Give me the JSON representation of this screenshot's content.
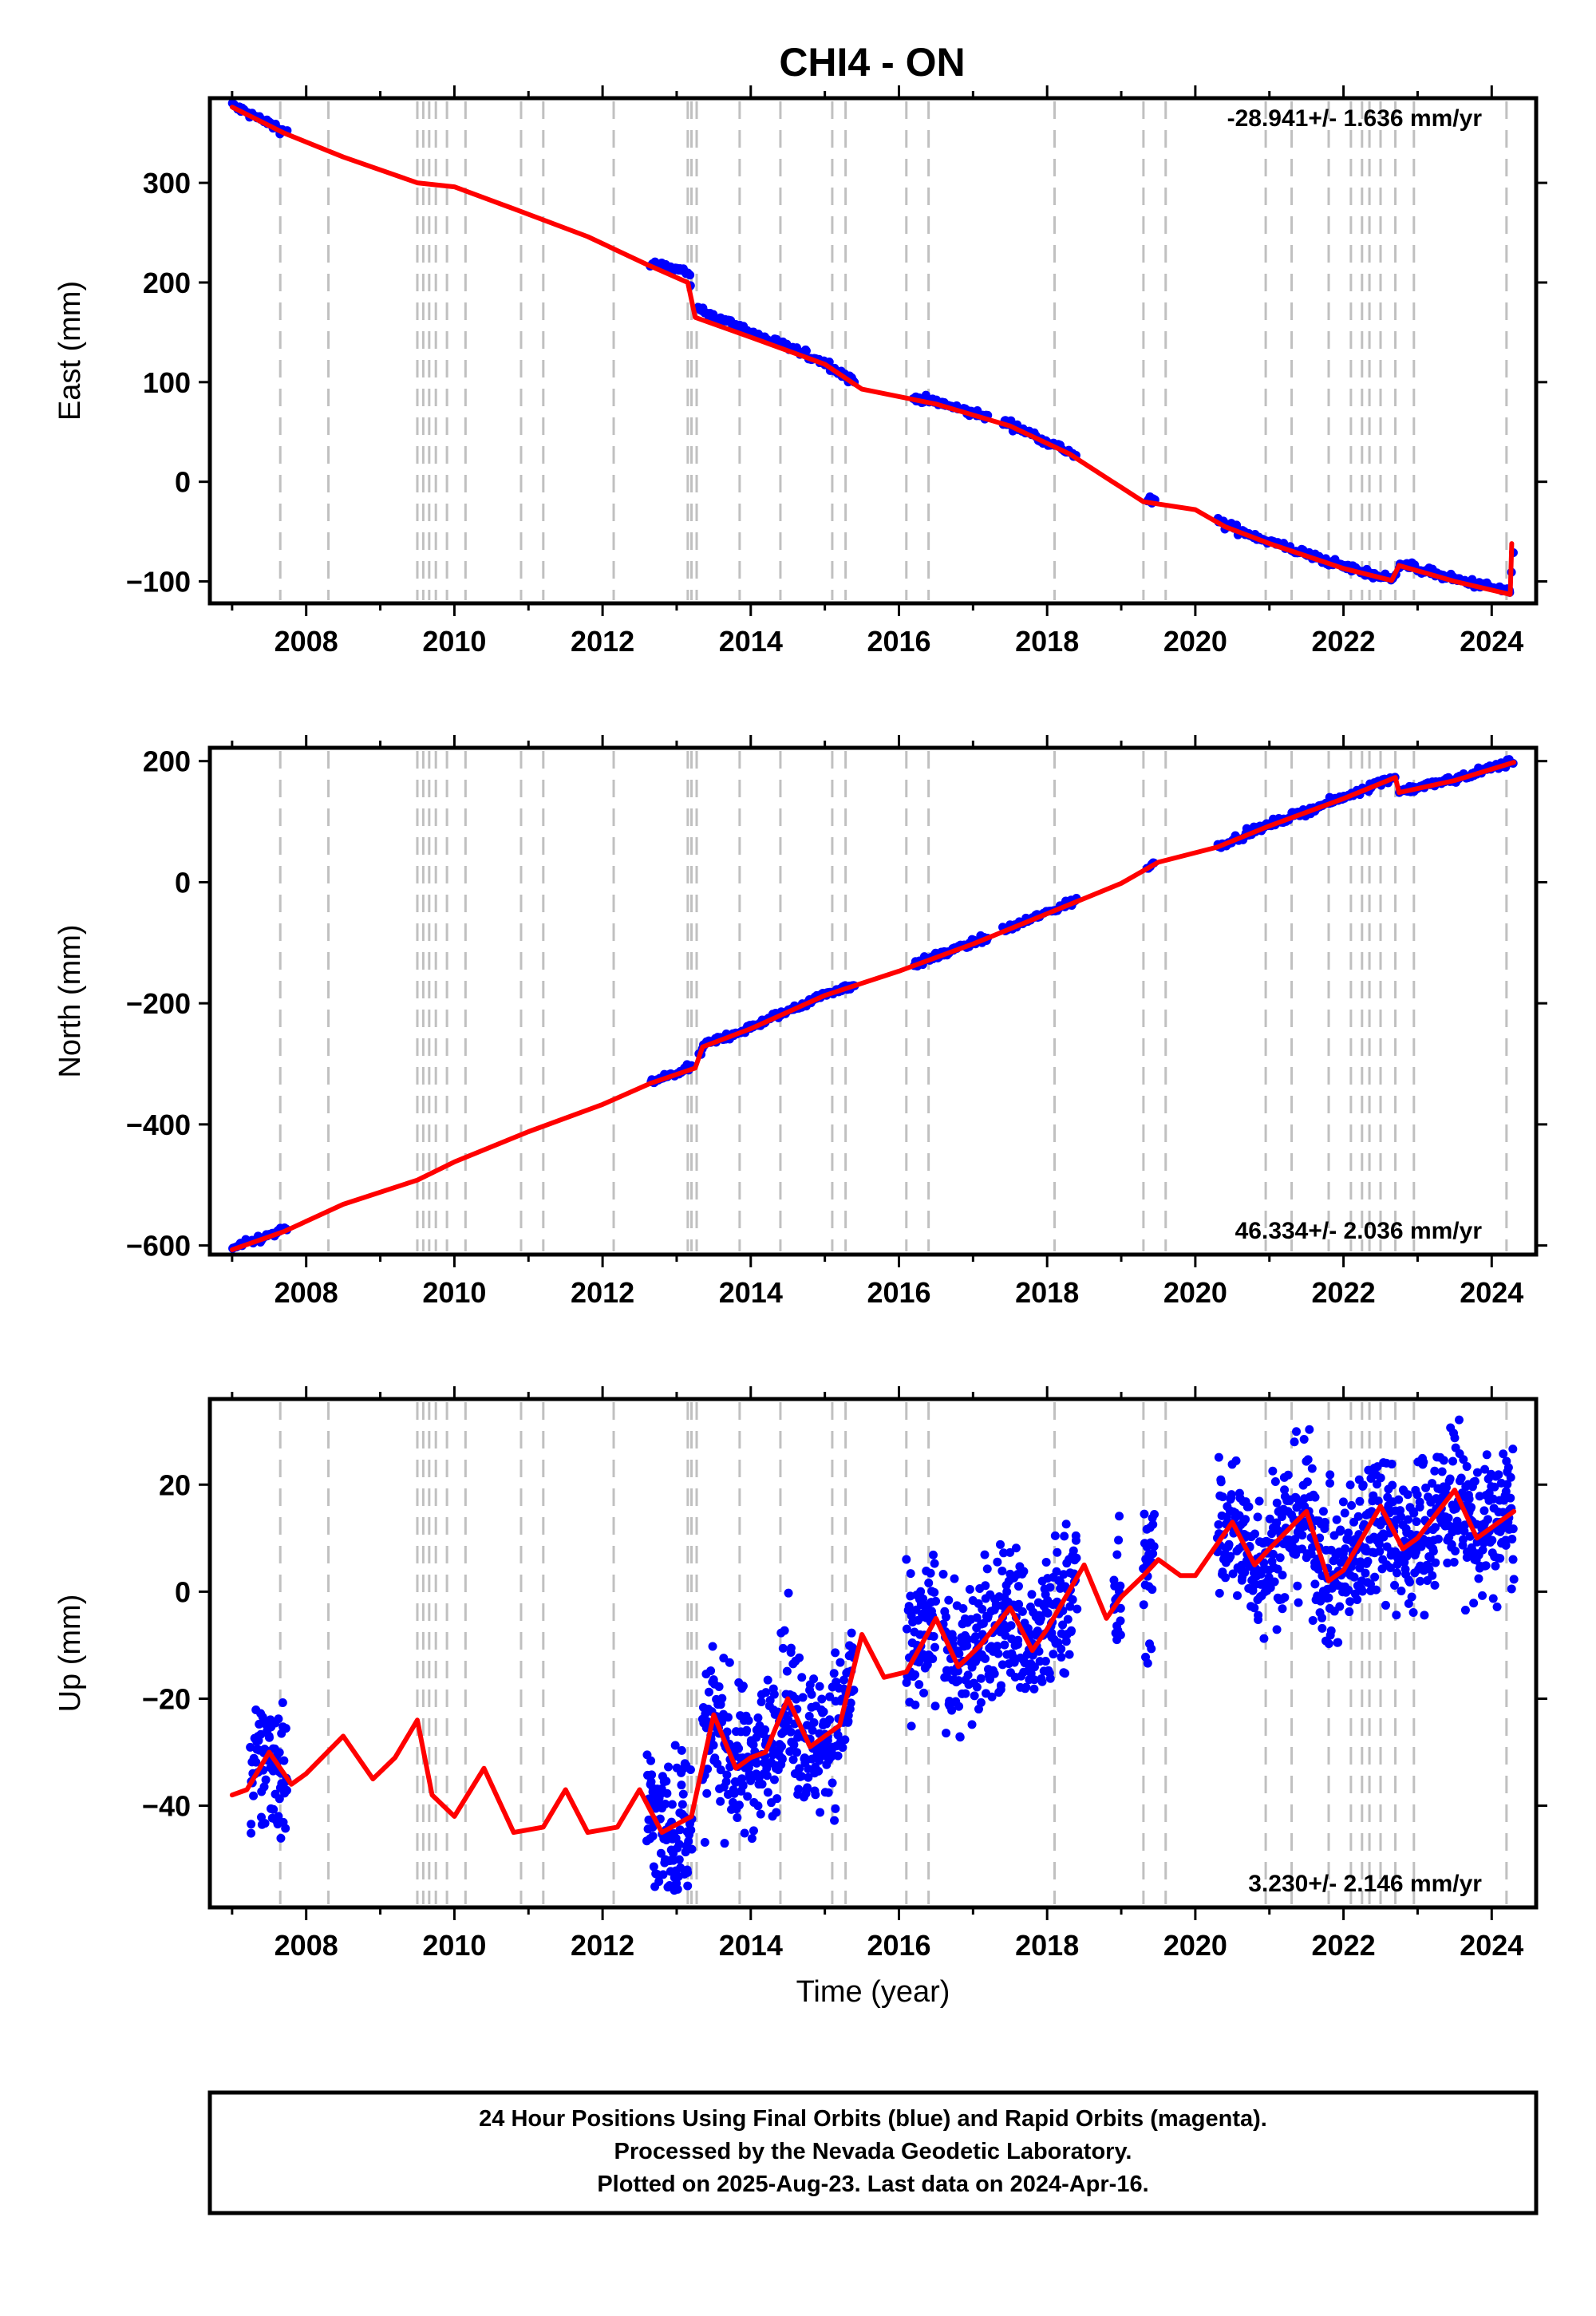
{
  "title": "CHI4 - ON",
  "footer": {
    "lines": [
      "24 Hour Positions Using Final Orbits (blue) and Rapid Orbits (magenta).",
      "Processed by the Nevada Geodetic Laboratory.",
      "Plotted on 2025-Aug-23. Last data on 2024-Apr-16."
    ]
  },
  "colors": {
    "data_points": "#0000ff",
    "model_line": "#ff0000",
    "event_lines": "#c0c0c0",
    "frame": "#000000"
  },
  "chart_data": [
    {
      "type": "scatter",
      "name": "east",
      "ylabel": "East (mm)",
      "xlabel": "",
      "rate_label": "-28.941+/- 1.636 mm/yr",
      "xlim": [
        2006.7,
        2024.6
      ],
      "ylim": [
        -122,
        385
      ],
      "y_ticks": [
        -100,
        0,
        100,
        200,
        300
      ],
      "y_tick_labels": [
        "−100",
        "0",
        "100",
        "200",
        "300"
      ],
      "x_ticks": [
        2008,
        2010,
        2012,
        2014,
        2016,
        2018,
        2020,
        2022,
        2024
      ],
      "x_tick_labels": [
        "2008",
        "2010",
        "2012",
        "2014",
        "2016",
        "2018",
        "2020",
        "2022",
        "2024"
      ],
      "event_lines": [
        2007.65,
        2008.3,
        2009.5,
        2009.58,
        2009.66,
        2009.75,
        2009.9,
        2010.15,
        2010.9,
        2011.2,
        2012.15,
        2013.15,
        2013.2,
        2013.27,
        2013.85,
        2014.4,
        2015.1,
        2015.28,
        2016.1,
        2016.4,
        2018.1,
        2019.3,
        2019.6,
        2020.95,
        2021.3,
        2021.8,
        2022.1,
        2022.25,
        2022.35,
        2022.5,
        2022.7,
        2022.95,
        2024.2
      ],
      "series": [
        {
          "role": "observations",
          "segments": [
            [
              2007.0,
              2007.75
            ],
            [
              2012.65,
              2013.2
            ],
            [
              2013.3,
              2015.4
            ],
            [
              2016.2,
              2017.2
            ],
            [
              2017.4,
              2018.4
            ],
            [
              2019.35,
              2019.45
            ],
            [
              2020.3,
              2022.7
            ],
            [
              2022.75,
              2024.3
            ]
          ],
          "scatter": 2.0,
          "x": [
            2007.0,
            2007.7,
            2008.5,
            2009.5,
            2010.0,
            2010.8,
            2011.8,
            2012.6,
            2013.15,
            2013.25,
            2014.0,
            2015.0,
            2015.5,
            2016.5,
            2017.5,
            2018.3,
            2019.3,
            2020.0,
            2020.4,
            2021.0,
            2022.0,
            2022.65,
            2022.75,
            2023.5,
            2024.25,
            2024.3
          ],
          "y": [
            378,
            352,
            330,
            302,
            300,
            278,
            248,
            220,
            210,
            175,
            150,
            120,
            95,
            80,
            58,
            30,
            -18,
            -26,
            -43,
            -60,
            -85,
            -98,
            -82,
            -98,
            -110,
            -62
          ]
        },
        {
          "role": "model",
          "x": [
            2007.0,
            2007.7,
            2008.5,
            2009.5,
            2010.0,
            2010.8,
            2011.8,
            2012.6,
            2013.15,
            2013.25,
            2014.0,
            2015.0,
            2015.5,
            2016.5,
            2017.5,
            2018.3,
            2019.3,
            2020.0,
            2020.4,
            2021.0,
            2022.0,
            2022.65,
            2022.75,
            2023.5,
            2024.25,
            2024.27
          ],
          "y": [
            376,
            350,
            326,
            300,
            296,
            274,
            246,
            218,
            200,
            165,
            145,
            118,
            93,
            78,
            56,
            28,
            -20,
            -28,
            -45,
            -62,
            -87,
            -99,
            -84,
            -100,
            -113,
            -62
          ]
        }
      ]
    },
    {
      "type": "scatter",
      "name": "north",
      "ylabel": "North (mm)",
      "xlabel": "",
      "rate_label": "46.334+/- 2.036 mm/yr",
      "xlim": [
        2006.7,
        2024.6
      ],
      "ylim": [
        -615,
        222
      ],
      "y_ticks": [
        -600,
        -400,
        -200,
        0,
        200
      ],
      "y_tick_labels": [
        "−600",
        "−400",
        "−200",
        "0",
        "200"
      ],
      "x_ticks": [
        2008,
        2010,
        2012,
        2014,
        2016,
        2018,
        2020,
        2022,
        2024
      ],
      "x_tick_labels": [
        "2008",
        "2010",
        "2012",
        "2014",
        "2016",
        "2018",
        "2020",
        "2022",
        "2024"
      ],
      "event_lines": [
        2007.65,
        2008.3,
        2009.5,
        2009.58,
        2009.66,
        2009.75,
        2009.9,
        2010.15,
        2010.9,
        2011.2,
        2012.15,
        2013.15,
        2013.2,
        2013.27,
        2013.85,
        2014.4,
        2015.1,
        2015.28,
        2016.1,
        2016.4,
        2018.1,
        2019.3,
        2019.6,
        2020.95,
        2021.3,
        2021.8,
        2022.1,
        2022.25,
        2022.35,
        2022.5,
        2022.7,
        2022.95,
        2024.2
      ],
      "series": [
        {
          "role": "observations",
          "segments": [
            [
              2007.0,
              2007.75
            ],
            [
              2012.65,
              2013.2
            ],
            [
              2013.3,
              2015.4
            ],
            [
              2016.2,
              2017.2
            ],
            [
              2017.4,
              2018.4
            ],
            [
              2019.35,
              2019.45
            ],
            [
              2020.3,
              2022.7
            ],
            [
              2022.75,
              2024.3
            ]
          ],
          "scatter": 3.0,
          "x": [
            2007.0,
            2007.7,
            2008.5,
            2009.5,
            2010.0,
            2011.0,
            2012.0,
            2012.65,
            2013.25,
            2013.35,
            2014.0,
            2015.0,
            2016.0,
            2017.0,
            2018.0,
            2019.0,
            2019.5,
            2020.3,
            2021.0,
            2022.0,
            2022.7,
            2022.75,
            2023.5,
            2024.3
          ],
          "y": [
            -605,
            -575,
            -530,
            -490,
            -460,
            -410,
            -365,
            -330,
            -305,
            -270,
            -240,
            -185,
            -145,
            -100,
            -50,
            0,
            35,
            60,
            95,
            140,
            175,
            150,
            170,
            200
          ]
        },
        {
          "role": "model",
          "x": [
            2007.0,
            2007.7,
            2008.5,
            2009.5,
            2010.0,
            2011.0,
            2012.0,
            2012.65,
            2013.25,
            2013.35,
            2014.0,
            2015.0,
            2016.0,
            2017.0,
            2018.0,
            2019.0,
            2019.5,
            2020.3,
            2021.0,
            2022.0,
            2022.7,
            2022.75,
            2023.5,
            2024.3
          ],
          "y": [
            -607,
            -577,
            -532,
            -492,
            -462,
            -412,
            -367,
            -332,
            -307,
            -272,
            -242,
            -187,
            -147,
            -102,
            -52,
            -2,
            33,
            58,
            93,
            138,
            173,
            148,
            168,
            198
          ]
        }
      ]
    },
    {
      "type": "scatter",
      "name": "up",
      "ylabel": "Up (mm)",
      "xlabel": "Time (year)",
      "rate_label": "3.230+/- 2.146 mm/yr",
      "xlim": [
        2006.7,
        2024.6
      ],
      "ylim": [
        -59,
        36
      ],
      "y_ticks": [
        -40,
        -20,
        0,
        20
      ],
      "y_tick_labels": [
        "−40",
        "−20",
        "0",
        "20"
      ],
      "x_ticks": [
        2008,
        2010,
        2012,
        2014,
        2016,
        2018,
        2020,
        2022,
        2024
      ],
      "x_tick_labels": [
        "2008",
        "2010",
        "2012",
        "2014",
        "2016",
        "2018",
        "2020",
        "2022",
        "2024"
      ],
      "event_lines": [
        2007.65,
        2008.3,
        2009.5,
        2009.58,
        2009.66,
        2009.75,
        2009.9,
        2010.15,
        2010.9,
        2011.2,
        2012.15,
        2013.15,
        2013.2,
        2013.27,
        2013.85,
        2014.4,
        2015.1,
        2015.28,
        2016.1,
        2016.4,
        2018.1,
        2019.3,
        2019.6,
        2020.95,
        2021.3,
        2021.8,
        2022.1,
        2022.25,
        2022.35,
        2022.5,
        2022.7,
        2022.95,
        2024.2
      ],
      "series": [
        {
          "role": "observations",
          "segments": [
            [
              2007.25,
              2007.75
            ],
            [
              2012.6,
              2013.2
            ],
            [
              2013.35,
              2015.4
            ],
            [
              2016.1,
              2016.5
            ],
            [
              2016.6,
              2018.4
            ],
            [
              2018.9,
              2019.0
            ],
            [
              2019.3,
              2019.45
            ],
            [
              2020.3,
              2024.3
            ]
          ],
          "scatter": 7.0,
          "x": [
            2007.0,
            2007.2,
            2007.5,
            2007.8,
            2008.0,
            2008.5,
            2008.9,
            2009.2,
            2009.5,
            2009.7,
            2010.0,
            2010.4,
            2010.8,
            2011.2,
            2011.5,
            2011.8,
            2012.2,
            2012.5,
            2012.8,
            2013.2,
            2013.5,
            2013.8,
            2014.0,
            2014.2,
            2014.5,
            2014.8,
            2015.2,
            2015.5,
            2015.8,
            2016.1,
            2016.5,
            2016.8,
            2017.1,
            2017.5,
            2017.8,
            2018.0,
            2018.5,
            2018.8,
            2019.0,
            2019.3,
            2019.5,
            2019.8,
            2020.0,
            2020.5,
            2020.8,
            2021.0,
            2021.5,
            2021.8,
            2022.0,
            2022.5,
            2022.8,
            2023.0,
            2023.5,
            2023.8,
            2024.0,
            2024.3
          ],
          "y": [
            -38,
            -37,
            -30,
            -36,
            -34,
            -27,
            -35,
            -31,
            -24,
            -38,
            -42,
            -33,
            -45,
            -44,
            -37,
            -45,
            -44,
            -37,
            -45,
            -42,
            -23,
            -33,
            -31,
            -30,
            -20,
            -29,
            -25,
            -8,
            -16,
            -15,
            -5,
            -14,
            -10,
            -3,
            -11,
            -7,
            5,
            -5,
            -1,
            3,
            6,
            3,
            3,
            13,
            5,
            8,
            15,
            2,
            4,
            16,
            8,
            10,
            19,
            10,
            12,
            15
          ]
        },
        {
          "role": "model",
          "x": [
            2007.0,
            2007.2,
            2007.5,
            2007.8,
            2008.0,
            2008.5,
            2008.9,
            2009.2,
            2009.5,
            2009.7,
            2010.0,
            2010.4,
            2010.8,
            2011.2,
            2011.5,
            2011.8,
            2012.2,
            2012.5,
            2012.8,
            2013.2,
            2013.5,
            2013.8,
            2014.0,
            2014.2,
            2014.5,
            2014.8,
            2015.2,
            2015.5,
            2015.8,
            2016.1,
            2016.5,
            2016.8,
            2017.1,
            2017.5,
            2017.8,
            2018.0,
            2018.5,
            2018.8,
            2019.0,
            2019.3,
            2019.5,
            2019.8,
            2020.0,
            2020.5,
            2020.8,
            2021.0,
            2021.5,
            2021.8,
            2022.0,
            2022.5,
            2022.8,
            2023.0,
            2023.5,
            2023.8,
            2024.0,
            2024.3
          ],
          "y": [
            -38,
            -37,
            -30,
            -36,
            -34,
            -27,
            -35,
            -31,
            -24,
            -38,
            -42,
            -33,
            -45,
            -44,
            -37,
            -45,
            -44,
            -37,
            -45,
            -42,
            -23,
            -33,
            -31,
            -30,
            -20,
            -29,
            -25,
            -8,
            -16,
            -15,
            -5,
            -14,
            -10,
            -3,
            -11,
            -7,
            5,
            -5,
            -1,
            3,
            6,
            3,
            3,
            13,
            5,
            8,
            15,
            2,
            4,
            16,
            8,
            10,
            19,
            10,
            12,
            15
          ]
        }
      ]
    }
  ]
}
